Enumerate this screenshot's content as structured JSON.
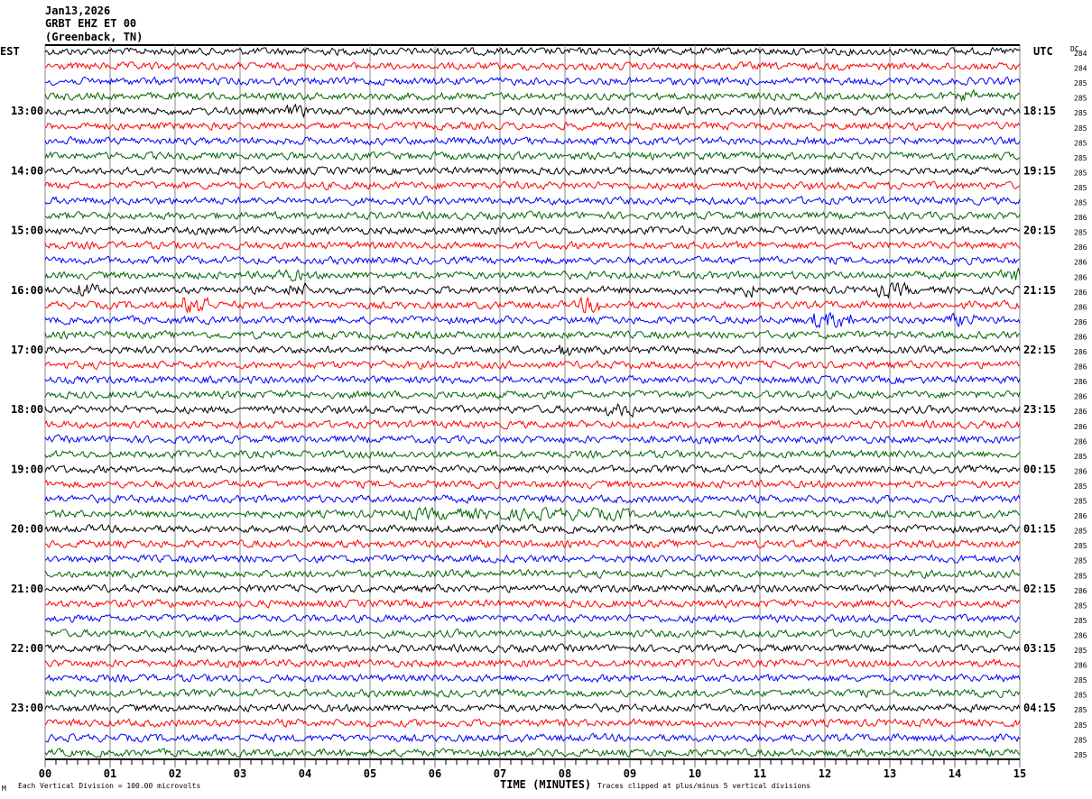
{
  "header": {
    "date": "Jan13,2026",
    "station": "GRBT EHZ ET 00",
    "location": "(Greenback, TN)"
  },
  "left_timezone": "EST",
  "right_timezone": "UTC",
  "dc_label": "DC",
  "chart_data": {
    "type": "line",
    "subtype": "helicorder",
    "xlabel": "TIME (MINUTES)",
    "x_tick_labels": [
      "00",
      "01",
      "02",
      "03",
      "04",
      "05",
      "06",
      "07",
      "08",
      "09",
      "10",
      "11",
      "12",
      "13",
      "14",
      "15"
    ],
    "xlim": [
      0,
      15
    ],
    "left_hour_labels": [
      "13:00",
      "14:00",
      "15:00",
      "16:00",
      "17:00",
      "18:00",
      "19:00",
      "20:00",
      "21:00",
      "22:00",
      "23:00"
    ],
    "right_hour_labels": [
      "18:15",
      "19:15",
      "20:15",
      "21:15",
      "22:15",
      "23:15",
      "00:15",
      "01:15",
      "02:15",
      "03:15",
      "04:15"
    ],
    "trace_colors": [
      "#000000",
      "#ff0000",
      "#0000ff",
      "#006400"
    ],
    "row_count": 48,
    "dc_offsets": [
      284,
      284,
      285,
      285,
      285,
      285,
      285,
      285,
      285,
      285,
      285,
      286,
      285,
      286,
      286,
      286,
      286,
      286,
      286,
      286,
      286,
      286,
      286,
      286,
      286,
      286,
      286,
      285,
      286,
      285,
      285,
      286,
      285,
      285,
      285,
      285,
      286,
      285,
      285,
      286,
      285,
      286,
      285,
      285,
      285,
      285,
      285,
      285
    ],
    "grid": true
  },
  "footer": {
    "scale": "Each Vertical Division =  100.00 microvolts",
    "clip": "Traces clipped at plus/minus 5 vertical divisions",
    "corner_mark": "M"
  }
}
